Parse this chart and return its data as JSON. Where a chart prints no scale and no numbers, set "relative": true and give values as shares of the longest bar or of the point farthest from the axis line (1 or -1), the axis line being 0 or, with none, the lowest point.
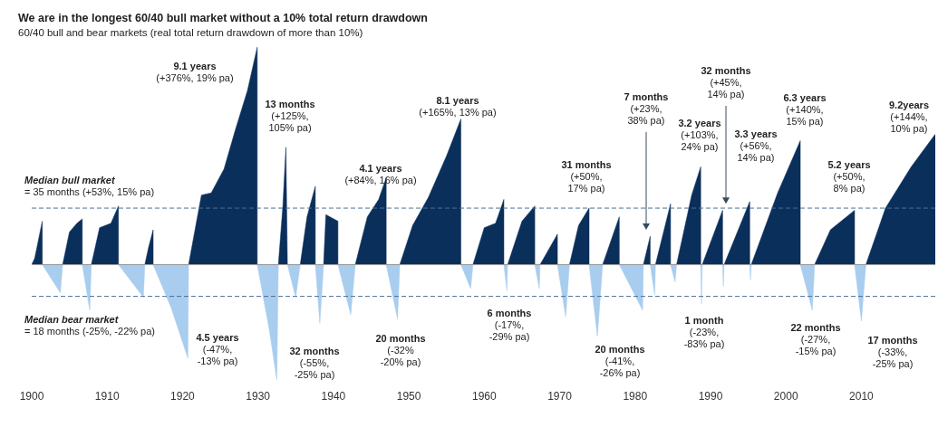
{
  "chart_data": {
    "type": "area",
    "title": "We are in the longest 60/40 bull market without a 10% total return drawdown",
    "subtitle": "60/40 bull and bear markets (real total return drawdown of more than 10%)",
    "relative": true,
    "xlim": [
      1900,
      2019.8
    ],
    "xticks": [
      1900,
      1910,
      1920,
      1930,
      1940,
      1950,
      1960,
      1970,
      1980,
      1990,
      2000,
      2010
    ],
    "series": [
      {
        "color": "#0b2f5b",
        "x": [
          1900.0,
          1900.4,
          1901.4,
          1901.4,
          1904.1,
          1905.0,
          1906.0,
          1906.7,
          1906.7,
          1907.9,
          1909.0,
          1910.5,
          1911.5,
          1911.5,
          1915.0,
          1915.5,
          1916.1,
          1916.1,
          1920.8,
          1922.5,
          1923.8,
          1925.5,
          1927.0,
          1928.6,
          1929.9,
          1929.9,
          1932.7,
          1933.3,
          1933.7,
          1933.9,
          1935.6,
          1936.5,
          1937.6,
          1937.6,
          1938.7,
          1939.0,
          1940.6,
          1940.6,
          1942.9,
          1944.5,
          1946.0,
          1947.0,
          1947.0,
          1948.8,
          1950.5,
          1952.6,
          1955.0,
          1956.9,
          1956.9,
          1958.5,
          1960.0,
          1961.5,
          1962.6,
          1962.6,
          1963.1,
          1965.0,
          1966.7,
          1966.7,
          1967.4,
          1969.7,
          1969.7,
          1971.3,
          1972.5,
          1973.9,
          1973.9,
          1975.7,
          1977.9,
          1977.9,
          1981.1,
          1982.0,
          1982.0,
          1982.7,
          1984.7,
          1984.7,
          1985.5,
          1987.5,
          1988.7,
          1988.7,
          1988.9,
          1991.6,
          1991.6,
          1991.8,
          1995.2,
          1995.2,
          1995.4,
          1998.9,
          2001.9,
          2001.9,
          2003.8,
          2005.9,
          2009.1,
          2009.1,
          2010.6,
          2013.2,
          2016.6,
          2019.8
        ],
        "values": [
          0,
          0.03,
          0.2,
          0,
          0,
          0.15,
          0.19,
          0.21,
          0,
          0,
          0.17,
          0.19,
          0.27,
          0,
          0,
          0.08,
          0.16,
          0,
          0,
          0.32,
          0.33,
          0.44,
          0.62,
          0.8,
          1.0,
          0,
          0,
          0.27,
          0.54,
          0,
          0,
          0.22,
          0.36,
          0,
          0,
          0.23,
          0.2,
          0,
          0,
          0.22,
          0.3,
          0.4,
          0,
          0,
          0.18,
          0.31,
          0.5,
          0.67,
          0,
          0,
          0.17,
          0.19,
          0.3,
          0,
          0,
          0.2,
          0.27,
          0,
          0,
          0.14,
          0,
          0,
          0.18,
          0.26,
          0,
          0,
          0.22,
          0,
          0,
          0.13,
          0,
          0,
          0.28,
          0,
          0,
          0.32,
          0.45,
          0,
          0,
          0.25,
          0,
          0,
          0.29,
          0,
          0,
          0.33,
          0.57,
          0,
          0,
          0.16,
          0.25,
          0,
          0,
          0.26,
          0.45,
          0.6
        ]
      },
      {
        "color": "#a8cdee",
        "x": [
          1901.4,
          1903.8,
          1904.1,
          1906.7,
          1907.7,
          1907.9,
          1911.5,
          1914.8,
          1915.0,
          1916.1,
          1918.5,
          1920.7,
          1920.8,
          1929.9,
          1931.5,
          1932.5,
          1932.7,
          1933.9,
          1935.0,
          1935.6,
          1937.6,
          1938.2,
          1938.7,
          1940.6,
          1942.3,
          1942.9,
          1947.0,
          1948.5,
          1948.8,
          1956.9,
          1958.2,
          1958.5,
          1962.6,
          1963.0,
          1963.1,
          1966.7,
          1967.3,
          1967.4,
          1969.7,
          1970.8,
          1971.3,
          1973.9,
          1975.0,
          1975.7,
          1977.9,
          1981.0,
          1981.1,
          1982.0,
          1982.6,
          1982.7,
          1984.7,
          1985.3,
          1985.5,
          1988.7,
          1988.8,
          1988.9,
          1991.6,
          1991.7,
          1991.8,
          1995.2,
          1995.3,
          1995.4,
          2001.9,
          2003.5,
          2003.8,
          2009.1,
          2010.0,
          2010.6
        ],
        "values": [
          0,
          -0.13,
          0,
          0,
          -0.21,
          0,
          0,
          -0.15,
          0,
          0,
          -0.2,
          -0.43,
          0,
          0,
          -0.3,
          -0.53,
          0,
          0,
          -0.15,
          0,
          0,
          -0.27,
          0,
          0,
          -0.23,
          0,
          0,
          -0.25,
          0,
          0,
          -0.11,
          0,
          0,
          -0.12,
          0,
          0,
          -0.11,
          0,
          0,
          -0.24,
          0,
          0,
          -0.33,
          0,
          0,
          -0.21,
          0,
          0,
          -0.14,
          0,
          0,
          -0.08,
          0,
          0,
          -0.18,
          0,
          0,
          -0.1,
          0,
          0,
          -0.07,
          0,
          0,
          -0.21,
          0,
          0,
          -0.26,
          0
        ]
      }
    ],
    "ref_lines": [
      {
        "axis": "y",
        "value": 0.26,
        "color": "#4a6f94",
        "line_style": "dashed"
      },
      {
        "axis": "y",
        "value": -0.146,
        "color": "#4a6f94",
        "line_style": "dashed"
      }
    ],
    "annotations": [
      "9.1 years\n(+376%, 19% pa)",
      "13 months\n(+125%,\n105% pa)",
      "4.1 years\n(+84%, 16% pa)",
      "8.1 years\n(+165%, 13% pa)",
      "31 months\n(+50%,\n17% pa)",
      "7 months\n(+23%,\n38% pa)",
      "3.2 years\n(+103%,\n24% pa)",
      "32 months\n(+45%,\n14% pa)",
      "3.3 years\n(+56%,\n14% pa)",
      "6.3 years\n(+140%,\n15% pa)",
      "5.2 years\n(+50%,\n8% pa)",
      "9.2years\n(+144%,\n10% pa)",
      "4.5 years\n(-47%,\n-13% pa)",
      "32 months\n(-55%,\n-25% pa)",
      "20 months\n(-32%\n-20% pa)",
      "6 months\n(-17%,\n-29% pa)",
      "20 months\n(-41%,\n-26% pa)",
      "1 month\n(-23%,\n-83% pa)",
      "22 months\n(-27%,\n-15% pa)",
      "17 months\n(-33%,\n-25% pa)",
      "Median bull market\n= 35 months (+53%, 15% pa)",
      "Median bear market\n= 18 months (-25%, -22% pa)"
    ]
  }
}
